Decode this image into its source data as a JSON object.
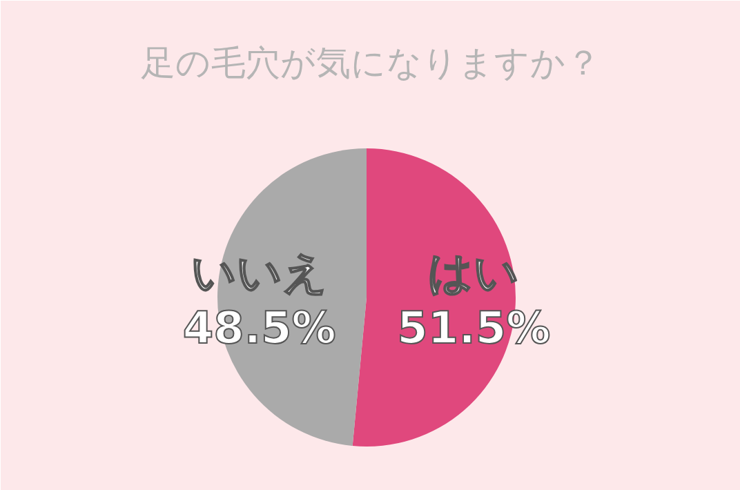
{
  "chart_data": {
    "type": "pie",
    "title": "足の毛穴が気になりますか？",
    "categories": [
      "はい",
      "いいえ"
    ],
    "values": [
      51.5,
      48.5
    ],
    "colors": [
      "#e0487d",
      "#aaaaaa"
    ],
    "value_labels": [
      "51.5%",
      "48.5%"
    ]
  }
}
